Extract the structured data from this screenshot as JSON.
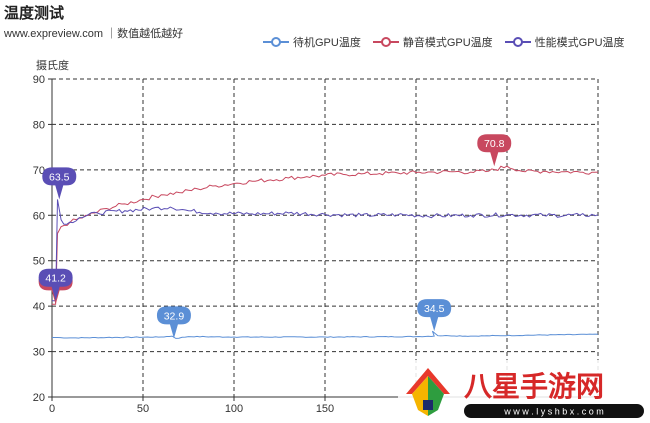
{
  "header": {
    "title": "温度测试",
    "subtitle": "www.expreview.com ｜数值越低越好"
  },
  "watermark": {
    "text": "八星手游网",
    "url": "w w w . l y s h b x . c o m"
  },
  "colors": {
    "idle": "#5b8fd6",
    "quiet": "#c8485f",
    "perf": "#5a4eb5",
    "grid": "#333333",
    "axis": "#333333"
  },
  "chart_data": {
    "type": "line",
    "ylabel": "摄氏度",
    "xlabel": "",
    "xlim": [
      0,
      300
    ],
    "ylim": [
      20,
      90
    ],
    "xticks": [
      0,
      50,
      100,
      150
    ],
    "yticks": [
      20,
      30,
      40,
      50,
      60,
      70,
      80,
      90
    ],
    "grid": true,
    "legend_position": "top-right",
    "series": [
      {
        "name": "待机GPU温度",
        "color": "#5b8fd6",
        "x": [
          0,
          3,
          10,
          30,
          60,
          66,
          68,
          75,
          100,
          150,
          200,
          210,
          209,
          212,
          218,
          230,
          260,
          300
        ],
        "y": [
          33.1,
          33.1,
          33.0,
          33.1,
          33.2,
          33.4,
          32.9,
          33.3,
          33.2,
          33.2,
          33.3,
          33.4,
          34.5,
          33.5,
          33.5,
          33.4,
          33.6,
          33.8
        ],
        "markers": [
          {
            "x": 67,
            "y": 32.9,
            "label": "32.9"
          },
          {
            "x": 210,
            "y": 34.5,
            "label": "34.5"
          }
        ]
      },
      {
        "name": "静音模式GPU温度",
        "color": "#c8485f",
        "x": [
          0,
          2,
          3,
          5,
          10,
          20,
          30,
          40,
          50,
          60,
          70,
          80,
          90,
          100,
          110,
          120,
          130,
          140,
          150,
          160,
          170,
          180,
          190,
          200,
          210,
          220,
          230,
          240,
          250,
          260,
          270,
          280,
          290,
          300
        ],
        "y": [
          40.4,
          40.4,
          56.0,
          57.5,
          58.5,
          60.0,
          61.5,
          62.5,
          63.5,
          64.5,
          65.0,
          65.8,
          66.5,
          67.0,
          67.5,
          67.8,
          68.2,
          68.5,
          68.8,
          69.0,
          69.1,
          69.2,
          69.3,
          69.4,
          69.5,
          69.6,
          69.5,
          69.7,
          70.8,
          69.6,
          69.7,
          69.6,
          69.5,
          69.5
        ],
        "markers": [
          {
            "x": 2,
            "y": 40.4,
            "label": "40.4"
          },
          {
            "x": 243,
            "y": 70.8,
            "label": "70.8"
          }
        ]
      },
      {
        "name": "性能模式GPU温度",
        "color": "#5a4eb5",
        "x": [
          0,
          2,
          3,
          5,
          8,
          15,
          25,
          40,
          55,
          65,
          75,
          90,
          110,
          130,
          150,
          170,
          190,
          210,
          230,
          250,
          270,
          290,
          300
        ],
        "y": [
          41.2,
          41.2,
          63.5,
          59.0,
          58.0,
          59.5,
          60.5,
          61.0,
          61.5,
          61.8,
          61.0,
          60.5,
          60.3,
          60.5,
          60.2,
          60.0,
          60.1,
          59.9,
          60.0,
          60.1,
          60.0,
          60.0,
          60.1
        ],
        "markers": [
          {
            "x": 4,
            "y": 63.5,
            "label": "63.5"
          },
          {
            "x": 2,
            "y": 41.2,
            "label": "41.2"
          }
        ]
      }
    ]
  }
}
